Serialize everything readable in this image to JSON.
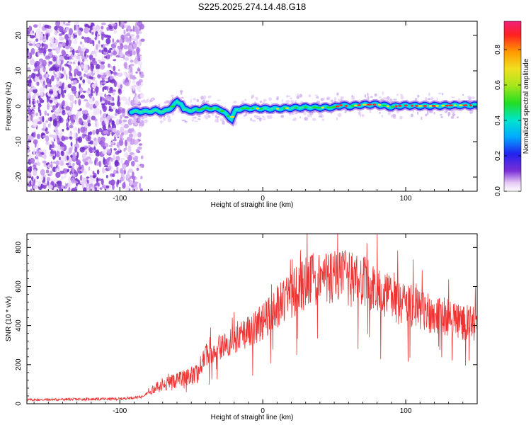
{
  "title": "S225.2025.274.14.48.G18",
  "chart_data": [
    {
      "type": "heatmap",
      "xlabel": "Height of straight line (km)",
      "ylabel": "Frequency (Hz)",
      "xlim": [
        -165,
        150
      ],
      "ylim": [
        -24,
        24
      ],
      "x_ticks": [
        -100,
        0,
        100
      ],
      "x_tick_labels": [
        "-100",
        "0",
        "100"
      ],
      "y_ticks": [
        -20,
        -10,
        0,
        10,
        20
      ],
      "y_tick_labels": [
        "-20",
        "-10",
        "0",
        "10",
        "20"
      ],
      "noise_region_x": [
        -165,
        -90
      ],
      "signal_start_x": -92,
      "ridge": {
        "x": [
          -92,
          -85,
          -80,
          -75,
          -70,
          -67,
          -63,
          -60,
          -57,
          -55,
          -50,
          -45,
          -40,
          -35,
          -30,
          -25,
          -22,
          -19,
          -15,
          -10,
          -5,
          0,
          10,
          20,
          30,
          40,
          50,
          55,
          60,
          70,
          80,
          85,
          90,
          95,
          100,
          110,
          120,
          130,
          140,
          150
        ],
        "y": [
          -1.5,
          -1.5,
          -1.5,
          -1.2,
          -1.6,
          -1.2,
          0,
          1.2,
          0.8,
          -1.0,
          -1.2,
          -1.0,
          -0.5,
          -0.7,
          -0.8,
          -2.5,
          -3.5,
          -1.2,
          -0.6,
          -0.6,
          -0.6,
          -0.7,
          -0.7,
          -0.5,
          -0.3,
          -0.4,
          -0.3,
          0.3,
          0.0,
          0.4,
          0.5,
          0.2,
          -0.2,
          0.1,
          0.2,
          0.1,
          0.1,
          0.2,
          0.3,
          0.2
        ]
      },
      "colorbar": {
        "label": "Normalized spectral amplitude",
        "range": [
          0,
          0.96
        ],
        "ticks": [
          0.0,
          0.2,
          0.4,
          0.6,
          0.8
        ],
        "tick_labels": [
          "0.0",
          "0.2",
          "0.4",
          "0.6",
          "0.8"
        ]
      }
    },
    {
      "type": "line",
      "xlabel": "Height of straight line (km)",
      "ylabel": "SNR (10 * v/v)",
      "xlim": [
        -165,
        150
      ],
      "ylim": [
        0,
        870
      ],
      "x_ticks": [
        -100,
        0,
        100
      ],
      "x_tick_labels": [
        "-100",
        "0",
        "100"
      ],
      "y_ticks": [
        0,
        200,
        400,
        600,
        800
      ],
      "y_tick_labels": [
        "0",
        "200",
        "400",
        "600",
        "800"
      ],
      "color": "#ee3333",
      "envelope": {
        "x": [
          -165,
          -100,
          -85,
          -80,
          -70,
          -60,
          -50,
          -45,
          -40,
          -30,
          -20,
          -10,
          0,
          10,
          20,
          30,
          40,
          50,
          60,
          70,
          80,
          90,
          100,
          110,
          120,
          130,
          140,
          150
        ],
        "y": [
          20,
          25,
          35,
          60,
          100,
          120,
          140,
          160,
          250,
          290,
          320,
          370,
          420,
          500,
          560,
          620,
          640,
          650,
          640,
          620,
          580,
          540,
          510,
          480,
          460,
          440,
          420,
          400
        ]
      }
    }
  ]
}
